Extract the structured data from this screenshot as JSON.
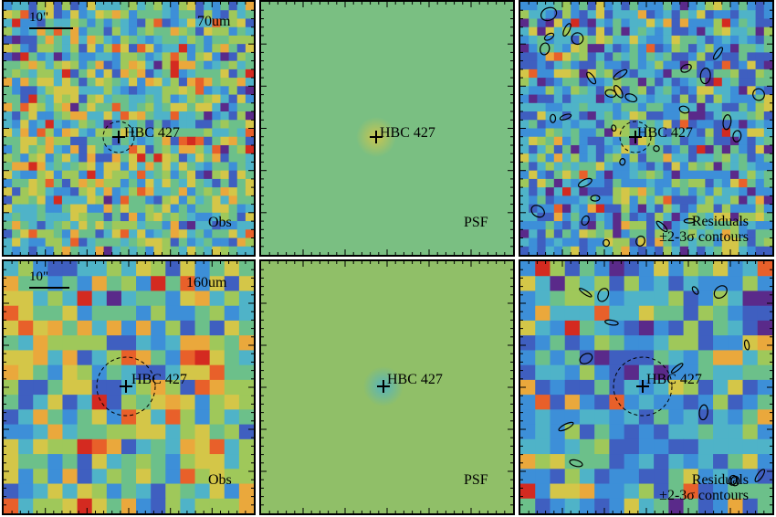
{
  "figure": {
    "rows": [
      {
        "band": "70um",
        "scale_bar": "10\"",
        "panels": [
          {
            "kind": "obs",
            "label": "Obs",
            "target": "HBC 427"
          },
          {
            "kind": "psf",
            "label": "PSF",
            "target": "HBC 427"
          },
          {
            "kind": "res",
            "label_line1": "Residuals",
            "label_line2": "±2-3σ contours",
            "target": "HBC 427"
          }
        ]
      },
      {
        "band": "160um",
        "scale_bar": "10\"",
        "panels": [
          {
            "kind": "obs",
            "label": "Obs",
            "target": "HBC 427"
          },
          {
            "kind": "psf",
            "label": "PSF",
            "target": "HBC 427"
          },
          {
            "kind": "res",
            "label_line1": "Residuals",
            "label_line2": "±2-3σ contours",
            "target": "HBC 427"
          }
        ]
      }
    ],
    "colors": {
      "psf_background_70": "#7abf82",
      "psf_background_160": "#90bf68",
      "colormap": [
        "#5a2a8a",
        "#3f5fc0",
        "#3d8fd8",
        "#4fb3c8",
        "#6cc08a",
        "#9fc85a",
        "#d4c648",
        "#eaa83c",
        "#e8602a",
        "#d42a20"
      ]
    }
  }
}
